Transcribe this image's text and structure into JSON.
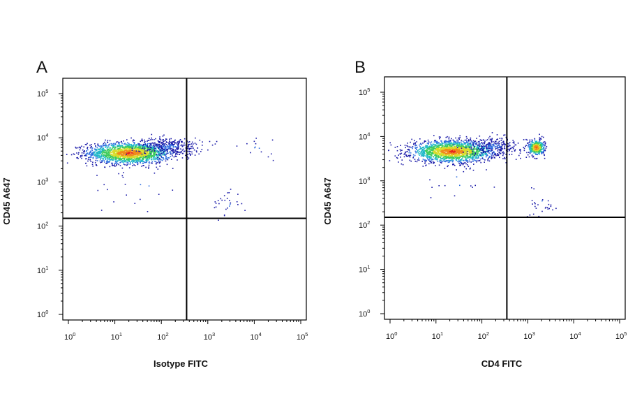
{
  "chart_data": [
    {
      "type": "scatter",
      "panel_label": "A",
      "xlabel": "Isotype FITC",
      "ylabel": "CD45 A647",
      "x_scale": "log",
      "y_scale": "log",
      "xlim": [
        1,
        100000
      ],
      "ylim": [
        1,
        100000
      ],
      "x_ticks": [
        {
          "base": "10",
          "exp": "0"
        },
        {
          "base": "10",
          "exp": "1"
        },
        {
          "base": "10",
          "exp": "2"
        },
        {
          "base": "10",
          "exp": "3"
        },
        {
          "base": "10",
          "exp": "4"
        },
        {
          "base": "10",
          "exp": "5"
        }
      ],
      "y_ticks": [
        {
          "base": "10",
          "exp": "0"
        },
        {
          "base": "10",
          "exp": "1"
        },
        {
          "base": "10",
          "exp": "2"
        },
        {
          "base": "10",
          "exp": "3"
        },
        {
          "base": "10",
          "exp": "4"
        },
        {
          "base": "10",
          "exp": "5"
        }
      ],
      "quadrant_gates": {
        "x": 350,
        "y": 150
      },
      "populations": [
        {
          "x_center": 20,
          "y_center": 4600,
          "x_spread": 0.45,
          "y_spread": 0.12,
          "count": 1900,
          "density": "high"
        },
        {
          "x_center": 150,
          "y_center": 6500,
          "x_spread": 0.35,
          "y_spread": 0.1,
          "count": 320,
          "density": "low"
        },
        {
          "x_center": 2500,
          "y_center": 330,
          "x_spread": 0.15,
          "y_spread": 0.18,
          "count": 28,
          "density": "low"
        },
        {
          "x_center": 8000,
          "y_center": 6000,
          "x_spread": 0.45,
          "y_spread": 0.15,
          "count": 14,
          "density": "low"
        },
        {
          "x_center": 30,
          "y_center": 800,
          "x_spread": 0.5,
          "y_spread": 0.35,
          "count": 20,
          "density": "low"
        }
      ]
    },
    {
      "type": "scatter",
      "panel_label": "B",
      "xlabel": "CD4 FITC",
      "ylabel": "CD45 A647",
      "x_scale": "log",
      "y_scale": "log",
      "xlim": [
        1,
        100000
      ],
      "ylim": [
        1,
        100000
      ],
      "x_ticks": [
        {
          "base": "10",
          "exp": "0"
        },
        {
          "base": "10",
          "exp": "1"
        },
        {
          "base": "10",
          "exp": "2"
        },
        {
          "base": "10",
          "exp": "3"
        },
        {
          "base": "10",
          "exp": "4"
        },
        {
          "base": "10",
          "exp": "5"
        }
      ],
      "y_ticks": [
        {
          "base": "10",
          "exp": "0"
        },
        {
          "base": "10",
          "exp": "1"
        },
        {
          "base": "10",
          "exp": "2"
        },
        {
          "base": "10",
          "exp": "3"
        },
        {
          "base": "10",
          "exp": "4"
        },
        {
          "base": "10",
          "exp": "5"
        }
      ],
      "quadrant_gates": {
        "x": 350,
        "y": 150
      },
      "populations": [
        {
          "x_center": 22,
          "y_center": 4700,
          "x_spread": 0.45,
          "y_spread": 0.12,
          "count": 1900,
          "density": "high"
        },
        {
          "x_center": 180,
          "y_center": 6200,
          "x_spread": 0.3,
          "y_spread": 0.1,
          "count": 250,
          "density": "low"
        },
        {
          "x_center": 1500,
          "y_center": 5800,
          "x_spread": 0.09,
          "y_spread": 0.09,
          "count": 380,
          "density": "high"
        },
        {
          "x_center": 2200,
          "y_center": 320,
          "x_spread": 0.15,
          "y_spread": 0.15,
          "count": 28,
          "density": "low"
        },
        {
          "x_center": 30,
          "y_center": 900,
          "x_spread": 0.5,
          "y_spread": 0.3,
          "count": 16,
          "density": "low"
        }
      ]
    }
  ],
  "colors": {
    "density_scale": [
      "#1a1aa8",
      "#2f6fe0",
      "#1fb8c8",
      "#3ccb5a",
      "#d8dc2a",
      "#f08a1a",
      "#e8231a"
    ],
    "axes": "#000000",
    "gate_lines": "#000000"
  }
}
